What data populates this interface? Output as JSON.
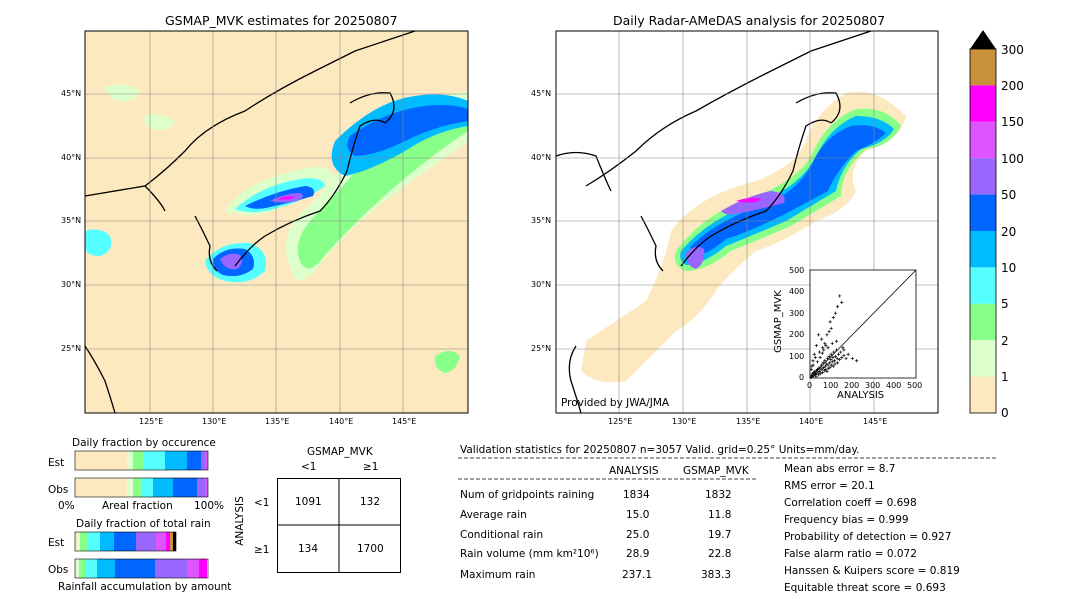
{
  "left_map": {
    "title": "GSMAP_MVK estimates for 20250807",
    "lat_labels": [
      "45°N",
      "40°N",
      "35°N",
      "30°N",
      "25°N"
    ],
    "lon_labels": [
      "125°E",
      "130°E",
      "135°E",
      "140°E",
      "145°E"
    ]
  },
  "right_map": {
    "title": "Daily Radar-AMeDAS analysis for 20250807",
    "lat_labels": [
      "45°N",
      "40°N",
      "35°N",
      "30°N",
      "25°N"
    ],
    "lon_labels": [
      "125°E",
      "130°E",
      "135°E",
      "140°E",
      "145°E"
    ],
    "provider": "Provided by JWA/JMA"
  },
  "colorbar": {
    "labels": [
      "300",
      "200",
      "150",
      "100",
      "50",
      "20",
      "10",
      "5",
      "2",
      "1",
      "0"
    ],
    "colors": [
      "#c8913a",
      "#ff00ff",
      "#dd55ff",
      "#9966ff",
      "#0066ff",
      "#00bbff",
      "#55ffff",
      "#88ff88",
      "#ddffcc",
      "#fde9bf"
    ]
  },
  "fraction_occurrence": {
    "title": "Daily fraction by occurence",
    "rows": [
      "Est",
      "Obs"
    ],
    "xmin": "0%",
    "xmid": "Areal fraction",
    "xmax": "100%"
  },
  "fraction_total": {
    "title": "Daily fraction of total rain",
    "rows": [
      "Est",
      "Obs"
    ],
    "xlabel": "Rainfall accumulation by amount"
  },
  "contingency": {
    "col_title": "GSMAP_MVK",
    "col_labels": [
      "<1",
      "≥1"
    ],
    "row_title": "ANALYSIS",
    "row_labels": [
      "<1",
      "≥1"
    ],
    "cells": [
      [
        "1091",
        "132"
      ],
      [
        "134",
        "1700"
      ]
    ]
  },
  "validation": {
    "header": "Validation statistics for 20250807  n=3057 Valid. grid=0.25° Units=mm/day.",
    "col_analysis": "ANALYSIS",
    "col_gsmap": "GSMAP_MVK",
    "rows": [
      {
        "label": "Num of gridpoints raining",
        "analysis": "1834",
        "gsmap": "1832"
      },
      {
        "label": "Average rain",
        "analysis": "15.0",
        "gsmap": "11.8"
      },
      {
        "label": "Conditional rain",
        "analysis": "25.0",
        "gsmap": "19.7"
      },
      {
        "label": "Rain volume (mm km²10⁶)",
        "analysis": "28.9",
        "gsmap": "22.8"
      },
      {
        "label": "Maximum rain",
        "analysis": "237.1",
        "gsmap": "383.3"
      }
    ],
    "scores": [
      "Mean abs error =    8.7",
      "RMS error =   20.1",
      "Correlation coeff =  0.698",
      "Frequency bias =  0.999",
      "Probability of detection =  0.927",
      "False alarm ratio =  0.072",
      "Hanssen & Kuipers score =  0.819",
      "Equitable threat score =  0.693"
    ]
  },
  "chart_data": {
    "type": "scatter",
    "xlabel": "ANALYSIS",
    "ylabel": "GSMAP_MVK",
    "xlim": [
      0,
      500
    ],
    "ylim": [
      0,
      500
    ],
    "ticks": [
      "0",
      "100",
      "200",
      "300",
      "400",
      "500"
    ],
    "points": [
      [
        5,
        3
      ],
      [
        8,
        12
      ],
      [
        10,
        6
      ],
      [
        12,
        20
      ],
      [
        15,
        10
      ],
      [
        18,
        25
      ],
      [
        20,
        15
      ],
      [
        22,
        30
      ],
      [
        25,
        18
      ],
      [
        28,
        8
      ],
      [
        30,
        35
      ],
      [
        32,
        22
      ],
      [
        35,
        40
      ],
      [
        38,
        28
      ],
      [
        40,
        15
      ],
      [
        42,
        45
      ],
      [
        45,
        30
      ],
      [
        48,
        50
      ],
      [
        50,
        20
      ],
      [
        52,
        38
      ],
      [
        55,
        60
      ],
      [
        58,
        42
      ],
      [
        60,
        25
      ],
      [
        62,
        70
      ],
      [
        65,
        48
      ],
      [
        68,
        35
      ],
      [
        70,
        80
      ],
      [
        72,
        55
      ],
      [
        75,
        40
      ],
      [
        78,
        65
      ],
      [
        80,
        30
      ],
      [
        82,
        90
      ],
      [
        85,
        60
      ],
      [
        88,
        45
      ],
      [
        90,
        100
      ],
      [
        92,
        70
      ],
      [
        95,
        50
      ],
      [
        98,
        85
      ],
      [
        100,
        110
      ],
      [
        102,
        60
      ],
      [
        105,
        75
      ],
      [
        108,
        95
      ],
      [
        110,
        55
      ],
      [
        112,
        120
      ],
      [
        115,
        80
      ],
      [
        118,
        65
      ],
      [
        120,
        100
      ],
      [
        125,
        130
      ],
      [
        128,
        90
      ],
      [
        130,
        70
      ],
      [
        135,
        110
      ],
      [
        140,
        85
      ],
      [
        145,
        120
      ],
      [
        150,
        95
      ],
      [
        155,
        140
      ],
      [
        160,
        105
      ],
      [
        170,
        90
      ],
      [
        180,
        110
      ],
      [
        60,
        140
      ],
      [
        70,
        160
      ],
      [
        55,
        180
      ],
      [
        40,
        200
      ],
      [
        80,
        200
      ],
      [
        90,
        215
      ],
      [
        100,
        230
      ],
      [
        95,
        260
      ],
      [
        110,
        280
      ],
      [
        120,
        300
      ],
      [
        130,
        330
      ],
      [
        150,
        350
      ],
      [
        140,
        380
      ],
      [
        30,
        150
      ],
      [
        20,
        110
      ],
      [
        15,
        60
      ],
      [
        45,
        120
      ],
      [
        65,
        130
      ],
      [
        85,
        140
      ],
      [
        105,
        160
      ],
      [
        200,
        90
      ],
      [
        220,
        80
      ],
      [
        6,
        40
      ],
      [
        9,
        55
      ],
      [
        14,
        80
      ],
      [
        25,
        95
      ],
      [
        35,
        75
      ],
      [
        48,
        95
      ],
      [
        58,
        115
      ],
      [
        75,
        150
      ],
      [
        125,
        170
      ],
      [
        160,
        130
      ]
    ]
  }
}
